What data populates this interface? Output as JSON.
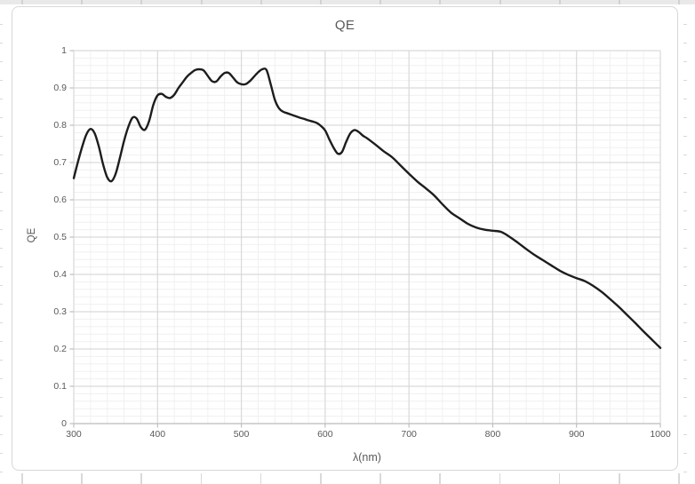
{
  "chart": {
    "title": "QE",
    "x_axis_title": "λ(nm)",
    "y_axis_title": "QE"
  },
  "chart_data": {
    "type": "line",
    "title": "QE",
    "xlabel": "λ(nm)",
    "ylabel": "QE",
    "xlim": [
      300,
      1000
    ],
    "ylim": [
      0,
      1
    ],
    "x_ticks": [
      "300",
      "400",
      "500",
      "600",
      "700",
      "800",
      "900",
      "1000"
    ],
    "y_ticks": [
      "0",
      "0.1",
      "0.2",
      "0.3",
      "0.4",
      "0.5",
      "0.6",
      "0.7",
      "0.8",
      "0.9",
      "1"
    ],
    "x_minor_step": 20,
    "y_minor_step": 0.02,
    "grid": "major+minor",
    "legend": "none",
    "series": [
      {
        "name": "QE",
        "x": [
          300,
          305,
          310,
          315,
          320,
          325,
          330,
          335,
          340,
          345,
          350,
          355,
          360,
          365,
          370,
          375,
          380,
          385,
          390,
          395,
          400,
          405,
          410,
          415,
          420,
          425,
          430,
          435,
          440,
          445,
          450,
          455,
          460,
          465,
          470,
          475,
          480,
          485,
          490,
          495,
          500,
          505,
          510,
          515,
          520,
          525,
          530,
          535,
          540,
          545,
          550,
          555,
          560,
          565,
          570,
          575,
          580,
          585,
          590,
          595,
          600,
          605,
          610,
          615,
          620,
          625,
          630,
          635,
          640,
          645,
          650,
          660,
          670,
          680,
          690,
          700,
          710,
          720,
          730,
          740,
          750,
          760,
          770,
          780,
          790,
          800,
          810,
          820,
          830,
          840,
          850,
          860,
          870,
          880,
          890,
          900,
          910,
          920,
          930,
          940,
          950,
          960,
          970,
          980,
          990,
          1000
        ],
        "y": [
          0.658,
          0.702,
          0.742,
          0.775,
          0.79,
          0.778,
          0.742,
          0.695,
          0.66,
          0.65,
          0.67,
          0.712,
          0.758,
          0.795,
          0.82,
          0.818,
          0.795,
          0.788,
          0.812,
          0.855,
          0.88,
          0.884,
          0.876,
          0.873,
          0.882,
          0.9,
          0.915,
          0.93,
          0.94,
          0.948,
          0.95,
          0.947,
          0.932,
          0.918,
          0.917,
          0.93,
          0.94,
          0.94,
          0.928,
          0.915,
          0.91,
          0.91,
          0.918,
          0.93,
          0.942,
          0.95,
          0.948,
          0.91,
          0.868,
          0.845,
          0.836,
          0.832,
          0.828,
          0.824,
          0.82,
          0.817,
          0.813,
          0.81,
          0.806,
          0.798,
          0.786,
          0.762,
          0.74,
          0.724,
          0.728,
          0.755,
          0.778,
          0.787,
          0.782,
          0.772,
          0.765,
          0.748,
          0.73,
          0.714,
          0.692,
          0.67,
          0.649,
          0.631,
          0.612,
          0.588,
          0.566,
          0.551,
          0.536,
          0.526,
          0.52,
          0.517,
          0.514,
          0.501,
          0.485,
          0.468,
          0.452,
          0.438,
          0.424,
          0.41,
          0.399,
          0.39,
          0.382,
          0.369,
          0.353,
          0.334,
          0.314,
          0.292,
          0.27,
          0.247,
          0.225,
          0.203
        ]
      }
    ]
  },
  "colors": {
    "line": "#1d1d1d",
    "grid_major": "#d9d9d9",
    "grid_minor": "#f0f0f0",
    "axis": "#bfbfbf",
    "text": "#595959",
    "chart_border": "#d7d7d7",
    "band": "#e9e9e9",
    "band_sep": "#d2d2d2",
    "decor_tick": "#d9d9d9"
  }
}
